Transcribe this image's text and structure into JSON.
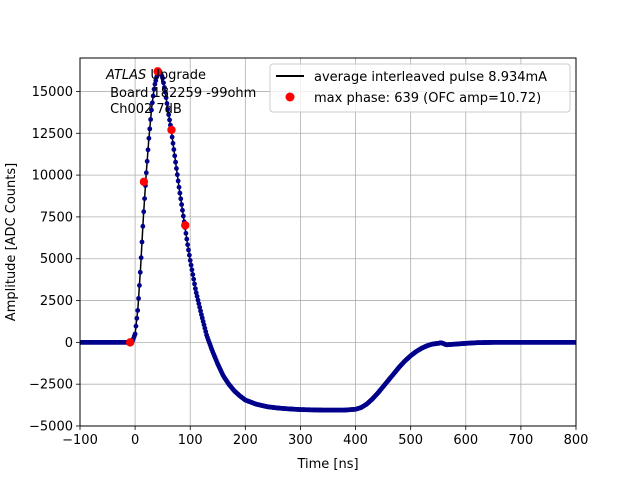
{
  "chart_data": {
    "type": "line",
    "xlabel": "Time [ns]",
    "ylabel": "Amplitude [ADC Counts]",
    "xlim": [
      -100,
      800
    ],
    "ylim": [
      -5000,
      17000
    ],
    "xticks": [
      -100,
      0,
      100,
      200,
      300,
      400,
      500,
      600,
      700,
      800
    ],
    "yticks": [
      -5000,
      -2500,
      0,
      2500,
      5000,
      7500,
      10000,
      12500,
      15000
    ],
    "grid": true,
    "legend_position": "top-right",
    "annotation": {
      "line1_italic": "ATLAS",
      "line1_rest": " Upgrade",
      "line2": " Board 182259 -99ohm",
      "line3": " Ch002 7dB"
    },
    "series": [
      {
        "name": "average interleaved pulse 8.934mA",
        "style": "line+dots",
        "line_color": "#000000",
        "marker_color": "#00008b",
        "points": [
          [
            -100,
            0
          ],
          [
            -10,
            0
          ],
          [
            -5,
            50
          ],
          [
            0,
            500
          ],
          [
            5,
            2000
          ],
          [
            10,
            4500
          ],
          [
            15,
            7500
          ],
          [
            20,
            10000
          ],
          [
            25,
            12200
          ],
          [
            30,
            14000
          ],
          [
            35,
            15300
          ],
          [
            40,
            16000
          ],
          [
            45,
            16200
          ],
          [
            50,
            15800
          ],
          [
            55,
            14900
          ],
          [
            60,
            13800
          ],
          [
            65,
            12800
          ],
          [
            70,
            11600
          ],
          [
            75,
            10400
          ],
          [
            80,
            9200
          ],
          [
            85,
            8100
          ],
          [
            90,
            7000
          ],
          [
            95,
            5900
          ],
          [
            100,
            4900
          ],
          [
            110,
            3100
          ],
          [
            120,
            1700
          ],
          [
            130,
            400
          ],
          [
            140,
            -500
          ],
          [
            150,
            -1300
          ],
          [
            160,
            -2000
          ],
          [
            170,
            -2500
          ],
          [
            180,
            -2900
          ],
          [
            190,
            -3200
          ],
          [
            200,
            -3450
          ],
          [
            220,
            -3700
          ],
          [
            240,
            -3850
          ],
          [
            260,
            -3930
          ],
          [
            280,
            -3980
          ],
          [
            300,
            -4020
          ],
          [
            340,
            -4050
          ],
          [
            380,
            -4050
          ],
          [
            400,
            -4000
          ],
          [
            410,
            -3900
          ],
          [
            420,
            -3700
          ],
          [
            430,
            -3400
          ],
          [
            440,
            -3050
          ],
          [
            450,
            -2650
          ],
          [
            460,
            -2250
          ],
          [
            470,
            -1850
          ],
          [
            480,
            -1450
          ],
          [
            490,
            -1100
          ],
          [
            500,
            -800
          ],
          [
            510,
            -550
          ],
          [
            520,
            -350
          ],
          [
            530,
            -200
          ],
          [
            540,
            -100
          ],
          [
            550,
            -60
          ],
          [
            555,
            -20
          ],
          [
            560,
            -80
          ],
          [
            565,
            -150
          ],
          [
            570,
            -130
          ],
          [
            580,
            -110
          ],
          [
            600,
            -60
          ],
          [
            620,
            -20
          ],
          [
            650,
            0
          ],
          [
            700,
            0
          ],
          [
            800,
            0
          ]
        ]
      },
      {
        "name": "max phase: 639 (OFC amp=10.72)",
        "style": "markers",
        "marker_color": "#ff0000",
        "points": [
          [
            -9,
            0
          ],
          [
            16,
            9600
          ],
          [
            41,
            16200
          ],
          [
            66,
            12700
          ],
          [
            91,
            7000
          ]
        ]
      }
    ]
  }
}
